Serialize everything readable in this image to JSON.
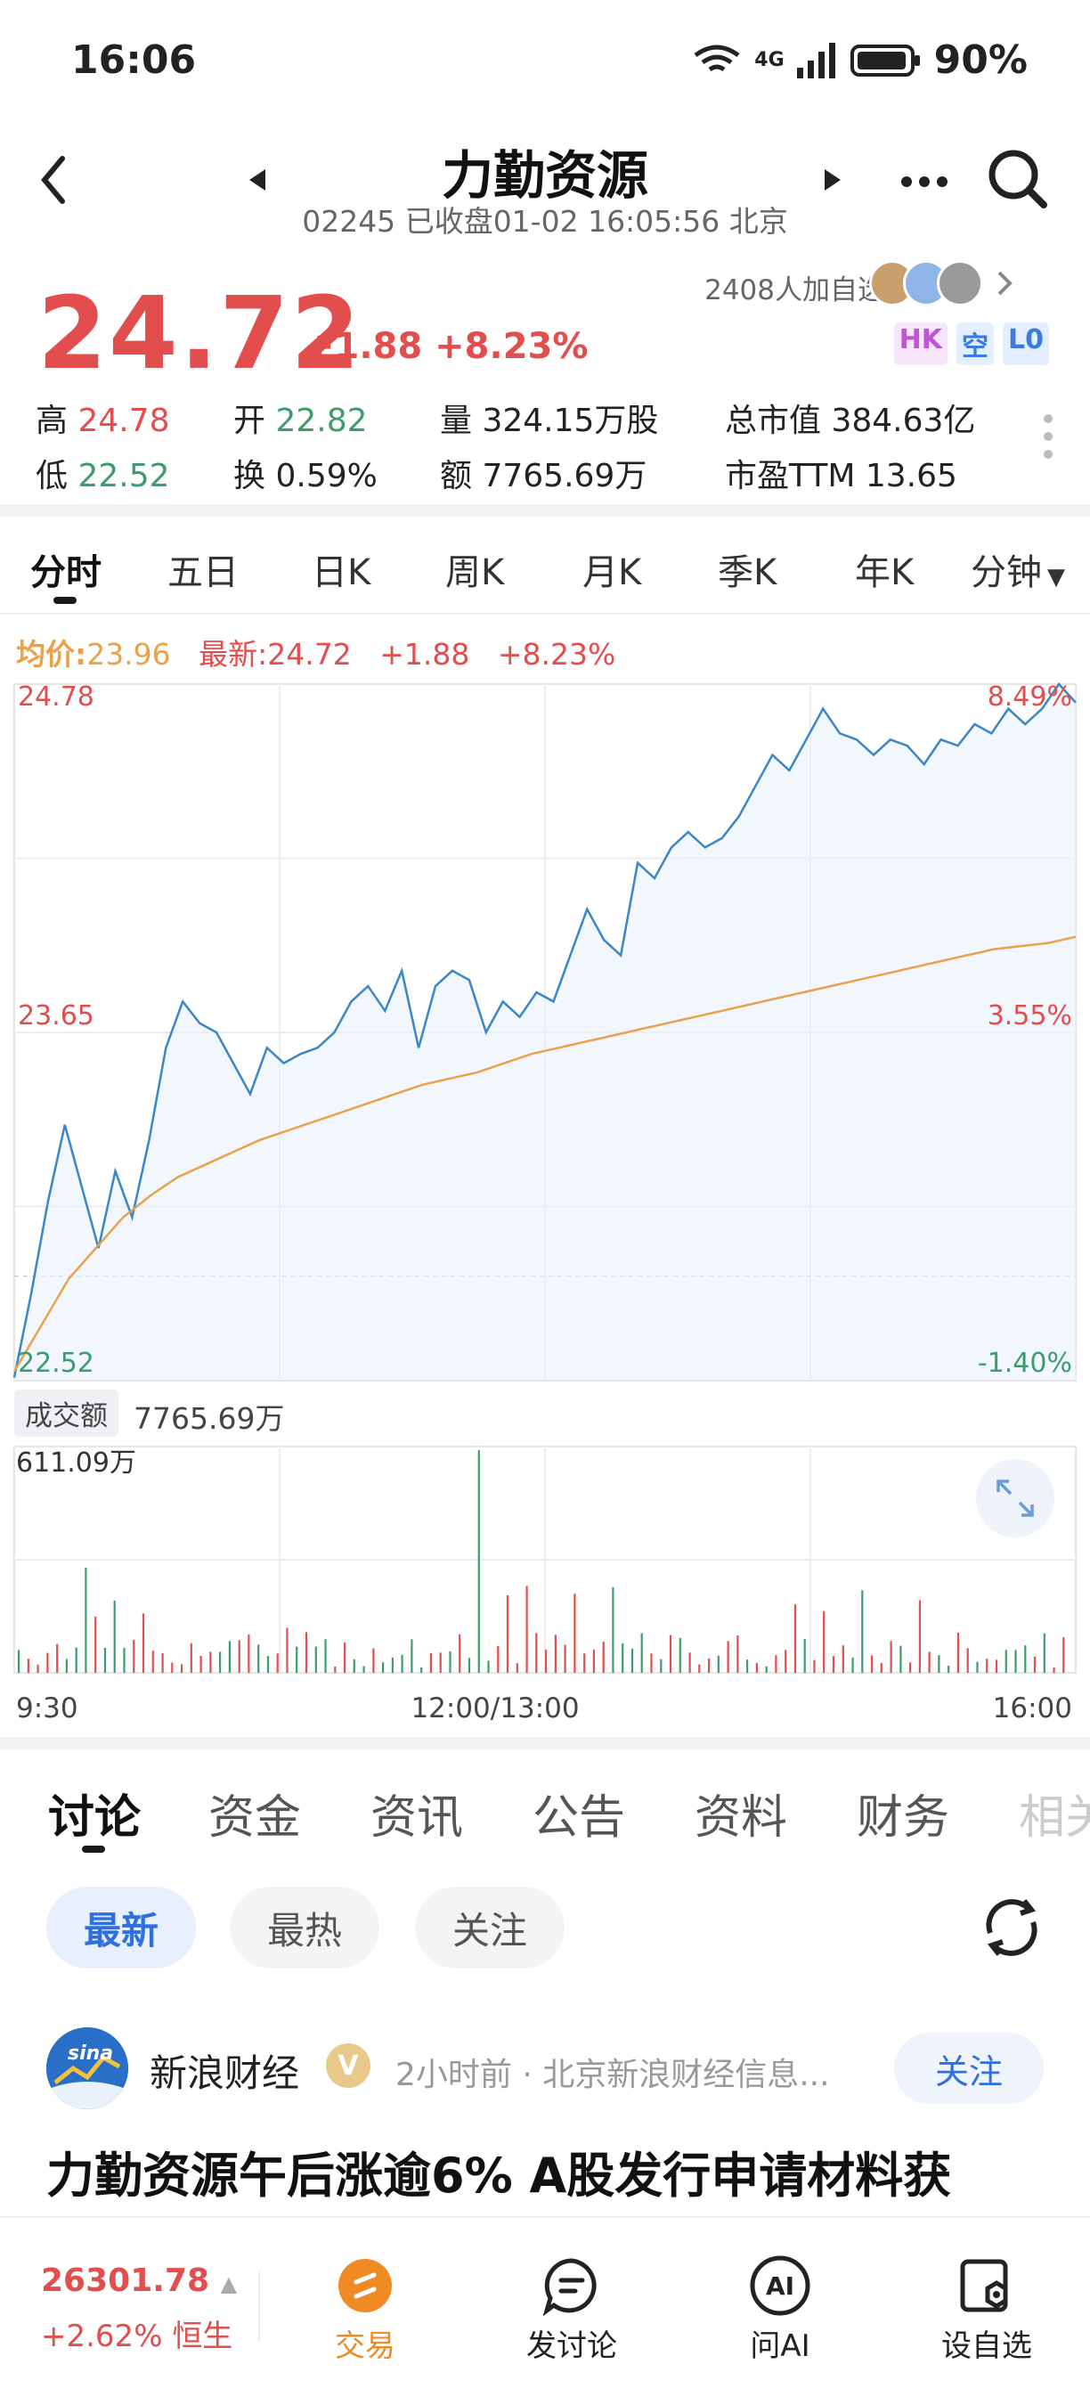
{
  "status_bar": {
    "time": "16:06",
    "battery": "90%",
    "network": "4G"
  },
  "header": {
    "title": "力勤资源",
    "code": "02245",
    "status": "已收盘01-02 16:05:56 北京"
  },
  "quote": {
    "price": "24.72",
    "change": "+1.88",
    "change_pct": "+8.23%",
    "watch_count": "2408人加自选",
    "badges": [
      "HK",
      "空",
      "L0"
    ]
  },
  "stats": {
    "high_label": "高",
    "high": "24.78",
    "open_label": "开",
    "open": "22.82",
    "volume_label": "量",
    "volume": "324.15万股",
    "mktcap_label": "总市值",
    "mktcap": "384.63亿",
    "low_label": "低",
    "low": "22.52",
    "turnover_label": "换",
    "turnover": "0.59%",
    "amount_label": "额",
    "amount": "7765.69万",
    "pe_label": "市盈TTM",
    "pe": "13.65"
  },
  "kline_tabs": [
    "分时",
    "五日",
    "日K",
    "周K",
    "月K",
    "季K",
    "年K",
    "分钟"
  ],
  "legend": {
    "avg_label": "均价:",
    "avg": "23.96",
    "last_label": "最新:",
    "last": "24.72",
    "change": "+1.88",
    "change_pct": "+8.23%"
  },
  "chart_data": {
    "type": "line",
    "y_left_ticks": [
      "24.78",
      "23.65",
      "22.52"
    ],
    "y_right_ticks": [
      "8.49%",
      "3.55%",
      "-1.40%"
    ],
    "ylim": [
      22.52,
      24.78
    ],
    "x_ticks": [
      "9:30",
      "12:00/13:00",
      "16:00"
    ],
    "series": [
      {
        "name": "最新",
        "color": "#3a86c8",
        "values": [
          22.53,
          22.8,
          23.1,
          23.35,
          23.15,
          22.95,
          23.2,
          23.05,
          23.3,
          23.6,
          23.75,
          23.68,
          23.65,
          23.55,
          23.45,
          23.6,
          23.55,
          23.58,
          23.6,
          23.65,
          23.75,
          23.8,
          23.72,
          23.85,
          23.6,
          23.8,
          23.85,
          23.82,
          23.65,
          23.75,
          23.7,
          23.78,
          23.75,
          23.9,
          24.05,
          23.95,
          23.9,
          24.2,
          24.15,
          24.25,
          24.3,
          24.25,
          24.28,
          24.35,
          24.45,
          24.55,
          24.5,
          24.6,
          24.7,
          24.62,
          24.6,
          24.55,
          24.6,
          24.58,
          24.52,
          24.6,
          24.58,
          24.65,
          24.62,
          24.7,
          24.65,
          24.7,
          24.78,
          24.72
        ]
      },
      {
        "name": "均价",
        "color": "#e9a24a",
        "values": [
          22.55,
          22.7,
          22.85,
          22.95,
          23.05,
          23.12,
          23.18,
          23.22,
          23.26,
          23.3,
          23.33,
          23.36,
          23.39,
          23.42,
          23.45,
          23.48,
          23.5,
          23.52,
          23.55,
          23.58,
          23.6,
          23.62,
          23.64,
          23.66,
          23.68,
          23.7,
          23.72,
          23.74,
          23.76,
          23.78,
          23.8,
          23.82,
          23.84,
          23.86,
          23.88,
          23.9,
          23.92,
          23.93,
          23.94,
          23.96
        ]
      }
    ]
  },
  "volume": {
    "label": "成交额",
    "amount": "7765.69万",
    "max_label": "611.09万"
  },
  "content_tabs": [
    "讨论",
    "资金",
    "资讯",
    "公告",
    "资料",
    "财务",
    "相关"
  ],
  "filter_pills": [
    "最新",
    "最热",
    "关注"
  ],
  "post": {
    "author": "新浪财经",
    "v_badge": "V",
    "meta": "2小时前 · 北京新浪财经信息...",
    "follow": "关注",
    "title": "力勤资源午后涨逾6% A股发行申请材料获",
    "logo_text": "sina"
  },
  "bottom_bar": {
    "index_value": "26301.78",
    "index_change": "+2.62%",
    "index_name": "恒生",
    "items": [
      "交易",
      "发讨论",
      "问AI",
      "设自选"
    ]
  }
}
